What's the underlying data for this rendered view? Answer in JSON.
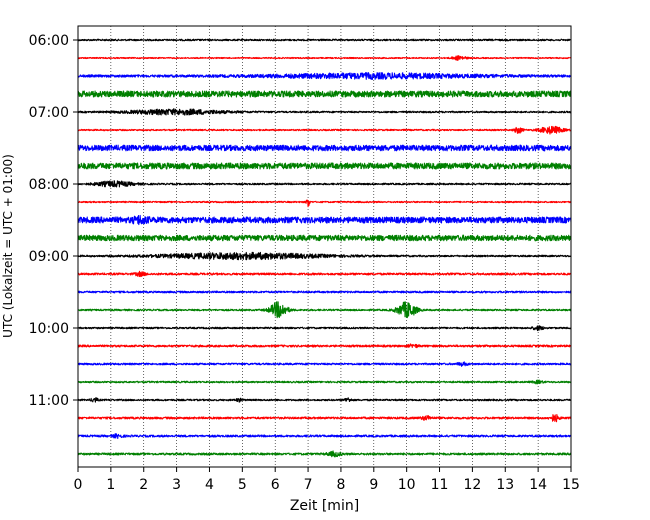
{
  "chart_data": {
    "type": "line",
    "title": "",
    "xlabel": "Zeit  [min]",
    "ylabel": "UTC (Lokalzeit = UTC + 01:00)",
    "xlim": [
      0,
      15
    ],
    "x_ticks": [
      "0",
      "1",
      "2",
      "3",
      "4",
      "5",
      "6",
      "7",
      "8",
      "9",
      "10",
      "11",
      "12",
      "13",
      "14",
      "15"
    ],
    "y_ticks": [
      "06:00",
      "07:00",
      "08:00",
      "09:00",
      "10:00",
      "11:00"
    ],
    "grid": "vertical dotted",
    "trace_interval_minutes": 15,
    "colors": [
      "#000000",
      "#ff0000",
      "#0000ff",
      "#008000"
    ],
    "traces": [
      {
        "start": "06:00",
        "color": "#000000",
        "amp": 0.8,
        "events": []
      },
      {
        "start": "06:15",
        "color": "#ff0000",
        "amp": 0.6,
        "events": [
          {
            "t": 11.6,
            "a": 2.0,
            "w": 0.4
          }
        ]
      },
      {
        "start": "06:30",
        "color": "#0000ff",
        "amp": 1.2,
        "events": [
          {
            "t": 9.0,
            "a": 2.2,
            "w": 6.0
          }
        ]
      },
      {
        "start": "06:45",
        "color": "#008000",
        "amp": 3.0,
        "events": []
      },
      {
        "start": "07:00",
        "color": "#000000",
        "amp": 0.8,
        "events": [
          {
            "t": 3.0,
            "a": 2.5,
            "w": 2.8
          }
        ]
      },
      {
        "start": "07:15",
        "color": "#ff0000",
        "amp": 0.7,
        "events": [
          {
            "t": 13.4,
            "a": 3.0,
            "w": 0.25
          },
          {
            "t": 14.4,
            "a": 3.5,
            "w": 0.7
          }
        ]
      },
      {
        "start": "07:30",
        "color": "#0000ff",
        "amp": 2.8,
        "events": []
      },
      {
        "start": "07:45",
        "color": "#008000",
        "amp": 3.0,
        "events": []
      },
      {
        "start": "08:00",
        "color": "#000000",
        "amp": 0.8,
        "events": [
          {
            "t": 1.1,
            "a": 2.6,
            "w": 1.1
          }
        ]
      },
      {
        "start": "08:15",
        "color": "#ff0000",
        "amp": 0.7,
        "events": [
          {
            "t": 7.0,
            "a": 4.5,
            "w": 0.1
          }
        ]
      },
      {
        "start": "08:30",
        "color": "#0000ff",
        "amp": 3.0,
        "events": [
          {
            "t": 1.9,
            "a": 2.5,
            "w": 0.4
          }
        ]
      },
      {
        "start": "08:45",
        "color": "#008000",
        "amp": 2.8,
        "events": []
      },
      {
        "start": "09:00",
        "color": "#000000",
        "amp": 0.8,
        "events": [
          {
            "t": 5.0,
            "a": 3.0,
            "w": 4.8
          }
        ]
      },
      {
        "start": "09:15",
        "color": "#ff0000",
        "amp": 1.0,
        "events": [
          {
            "t": 1.9,
            "a": 1.8,
            "w": 0.3
          }
        ]
      },
      {
        "start": "09:30",
        "color": "#0000ff",
        "amp": 0.9,
        "events": []
      },
      {
        "start": "09:45",
        "color": "#008000",
        "amp": 0.8,
        "events": [
          {
            "t": 6.1,
            "a": 8.0,
            "w": 0.5
          },
          {
            "t": 10.0,
            "a": 8.0,
            "w": 0.55
          }
        ]
      },
      {
        "start": "10:00",
        "color": "#000000",
        "amp": 0.8,
        "events": [
          {
            "t": 14.0,
            "a": 2.0,
            "w": 0.3
          }
        ]
      },
      {
        "start": "10:15",
        "color": "#ff0000",
        "amp": 1.0,
        "events": [
          {
            "t": 10.2,
            "a": 1.4,
            "w": 0.3
          }
        ]
      },
      {
        "start": "10:30",
        "color": "#0000ff",
        "amp": 0.9,
        "events": [
          {
            "t": 11.7,
            "a": 1.5,
            "w": 0.3
          }
        ]
      },
      {
        "start": "10:45",
        "color": "#008000",
        "amp": 0.8,
        "events": [
          {
            "t": 14.0,
            "a": 1.3,
            "w": 0.3
          }
        ]
      },
      {
        "start": "11:00",
        "color": "#000000",
        "amp": 0.8,
        "events": [
          {
            "t": 0.5,
            "a": 2.2,
            "w": 0.2
          },
          {
            "t": 8.2,
            "a": 2.0,
            "w": 0.2
          },
          {
            "t": 4.9,
            "a": 1.4,
            "w": 0.2
          }
        ]
      },
      {
        "start": "11:15",
        "color": "#ff0000",
        "amp": 1.0,
        "events": [
          {
            "t": 14.5,
            "a": 3.5,
            "w": 0.25
          },
          {
            "t": 10.6,
            "a": 1.8,
            "w": 0.3
          }
        ]
      },
      {
        "start": "11:30",
        "color": "#0000ff",
        "amp": 1.0,
        "events": [
          {
            "t": 1.2,
            "a": 1.5,
            "w": 0.3
          }
        ]
      },
      {
        "start": "11:45",
        "color": "#008000",
        "amp": 1.0,
        "events": [
          {
            "t": 7.8,
            "a": 2.2,
            "w": 0.4
          }
        ]
      }
    ]
  }
}
